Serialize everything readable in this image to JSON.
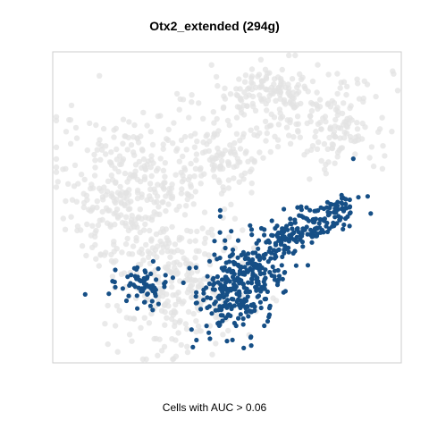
{
  "chart_data": {
    "type": "scatter",
    "title": "Otx2_extended (294g)",
    "xlabel": "Cells with AUC > 0.06",
    "ylabel": "",
    "grid": false,
    "legend": "none",
    "colors": {
      "background_cells": "#e3e3e3",
      "selected_cells": "#164f86",
      "panel_border": "#cccccc"
    },
    "xlim": [
      0,
      100
    ],
    "ylim": [
      0,
      100
    ],
    "background_cells": {
      "clusters": [
        {
          "center": [
            60,
            91
          ],
          "spread": [
            6,
            3
          ],
          "count": 60
        },
        {
          "center": [
            70,
            83
          ],
          "spread": [
            14,
            7
          ],
          "count": 170
        },
        {
          "center": [
            83,
            73
          ],
          "spread": [
            6,
            6
          ],
          "count": 70
        },
        {
          "center": [
            46,
            66
          ],
          "spread": [
            9,
            7
          ],
          "count": 130
        },
        {
          "center": [
            20,
            57
          ],
          "spread": [
            11,
            12
          ],
          "count": 260
        },
        {
          "center": [
            29,
            40
          ],
          "spread": [
            9,
            9
          ],
          "count": 120
        },
        {
          "center": [
            35,
            17
          ],
          "spread": [
            9,
            9
          ],
          "count": 140
        },
        {
          "center": [
            44,
            24
          ],
          "spread": [
            7,
            7
          ],
          "count": 50
        }
      ]
    },
    "selected_cells": {
      "clusters": [
        {
          "center": [
            52,
            20
          ],
          "spread": [
            5,
            6
          ],
          "count": 170
        },
        {
          "center": [
            58,
            31
          ],
          "spread": [
            6,
            5
          ],
          "count": 150
        },
        {
          "center": [
            68,
            40
          ],
          "spread": [
            4,
            3
          ],
          "count": 70
        },
        {
          "center": [
            76,
            45
          ],
          "spread": [
            4,
            3
          ],
          "count": 55
        },
        {
          "center": [
            84,
            50
          ],
          "spread": [
            3,
            2.5
          ],
          "count": 45
        },
        {
          "center": [
            25,
            24
          ],
          "spread": [
            4,
            3
          ],
          "count": 70
        }
      ],
      "extra_points": [
        [
          87,
          66
        ],
        [
          48,
          47
        ],
        [
          48,
          49
        ],
        [
          40,
          4
        ],
        [
          44,
          11
        ],
        [
          50,
          6
        ],
        [
          39,
          30
        ],
        [
          41,
          22
        ]
      ]
    }
  }
}
